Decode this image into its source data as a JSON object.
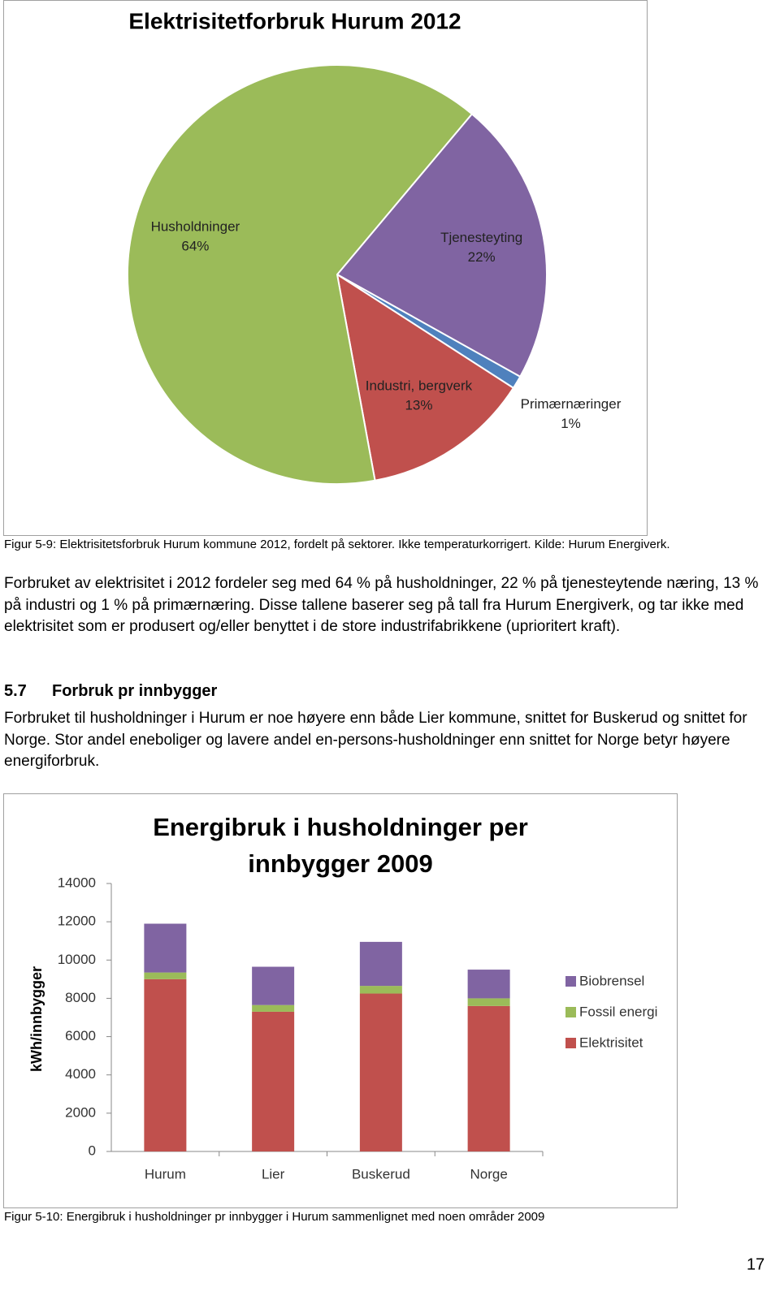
{
  "chart_data": [
    {
      "type": "pie",
      "title": "Elektrisitetforbruk  Hurum 2012",
      "categories": [
        "Tjenesteyting",
        "Primærnæringer",
        "Industri, bergverk",
        "Husholdninger"
      ],
      "values": [
        22,
        1,
        13,
        64
      ],
      "value_labels": [
        "22%",
        "1%",
        "13%",
        "64%"
      ],
      "colors": [
        "#8064a2",
        "#4f81bd",
        "#c0504d",
        "#9bbb59"
      ]
    },
    {
      "type": "stacked_bar",
      "title": "Energibruk i husholdninger per innbygger 2009",
      "y_label": "kWh/innbygger",
      "categories": [
        "Hurum",
        "Lier",
        "Buskerud",
        "Norge"
      ],
      "series": [
        {
          "name": "Elektrisitet",
          "color": "#c0504d",
          "values": [
            9000,
            7300,
            8250,
            7600
          ]
        },
        {
          "name": "Fossil energi",
          "color": "#9bbb59",
          "values": [
            350,
            350,
            400,
            400
          ]
        },
        {
          "name": "Biobrensel",
          "color": "#8064a2",
          "values": [
            2550,
            2000,
            2300,
            1500
          ]
        }
      ],
      "ylim": [
        0,
        14000
      ],
      "yticks": [
        0,
        2000,
        4000,
        6000,
        8000,
        10000,
        12000,
        14000
      ],
      "grid": false,
      "legend": "right"
    }
  ],
  "figure_captions": [
    "Figur 5-9: Elektrisitetsforbruk Hurum kommune 2012, fordelt på sektorer. Ikke temperaturkorrigert. Kilde: Hurum Energiverk.",
    "Figur 5-10: Energibruk i husholdninger pr innbygger i Hurum sammenlignet med noen områder 2009"
  ],
  "paragraphs": [
    "Forbruket av elektrisitet i 2012 fordeler seg med 64 % på husholdninger, 22 % på tjenesteytende næring, 13 % på industri og 1 % på primærnæring. Disse tallene baserer seg på tall fra Hurum Energiverk, og tar ikke med elektrisitet som er produsert og/eller benyttet i de store industrifabrikkene (uprioritert kraft).",
    "Forbruket til husholdninger i Hurum er noe høyere enn både Lier kommune, snittet for Buskerud og snittet for Norge. Stor andel eneboliger og lavere andel en-persons-husholdninger enn snittet for Norge betyr høyere energiforbruk."
  ],
  "section": {
    "number": "5.7",
    "title": "Forbruk pr innbygger"
  },
  "page_number": 17
}
